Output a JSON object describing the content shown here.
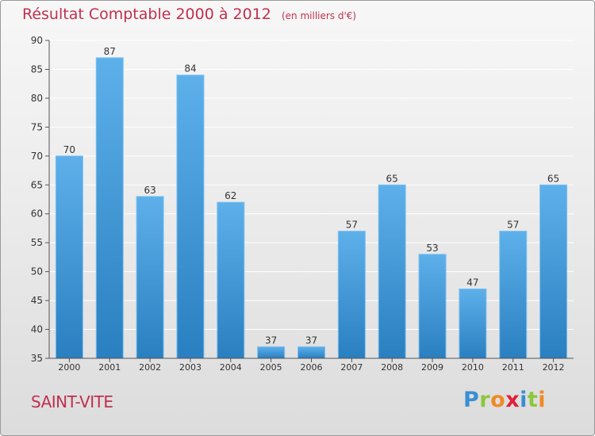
{
  "chart_data": {
    "type": "bar",
    "title": "Résultat Comptable 2000 à 2012",
    "subtitle": "(en milliers d'€)",
    "categories": [
      "2000",
      "2001",
      "2002",
      "2003",
      "2004",
      "2005",
      "2006",
      "2007",
      "2008",
      "2009",
      "2010",
      "2011",
      "2012"
    ],
    "values": [
      70,
      87,
      63,
      84,
      62,
      37,
      37,
      57,
      65,
      53,
      47,
      57,
      65
    ],
    "ylim": [
      35,
      90
    ],
    "yticks": [
      35,
      40,
      45,
      50,
      55,
      60,
      65,
      70,
      75,
      80,
      85,
      90
    ],
    "grid": true,
    "bar_color": "#3c96dc",
    "title_color": "#c0304f"
  },
  "footer": {
    "commune": "SAINT-VITE",
    "brand": "Proxiti",
    "brand_letter_colors": [
      "#3a8fd0",
      "#8dc63f",
      "#f08a24",
      "#e0213a",
      "#3a8fd0",
      "#8dc63f",
      "#f08a24"
    ]
  }
}
